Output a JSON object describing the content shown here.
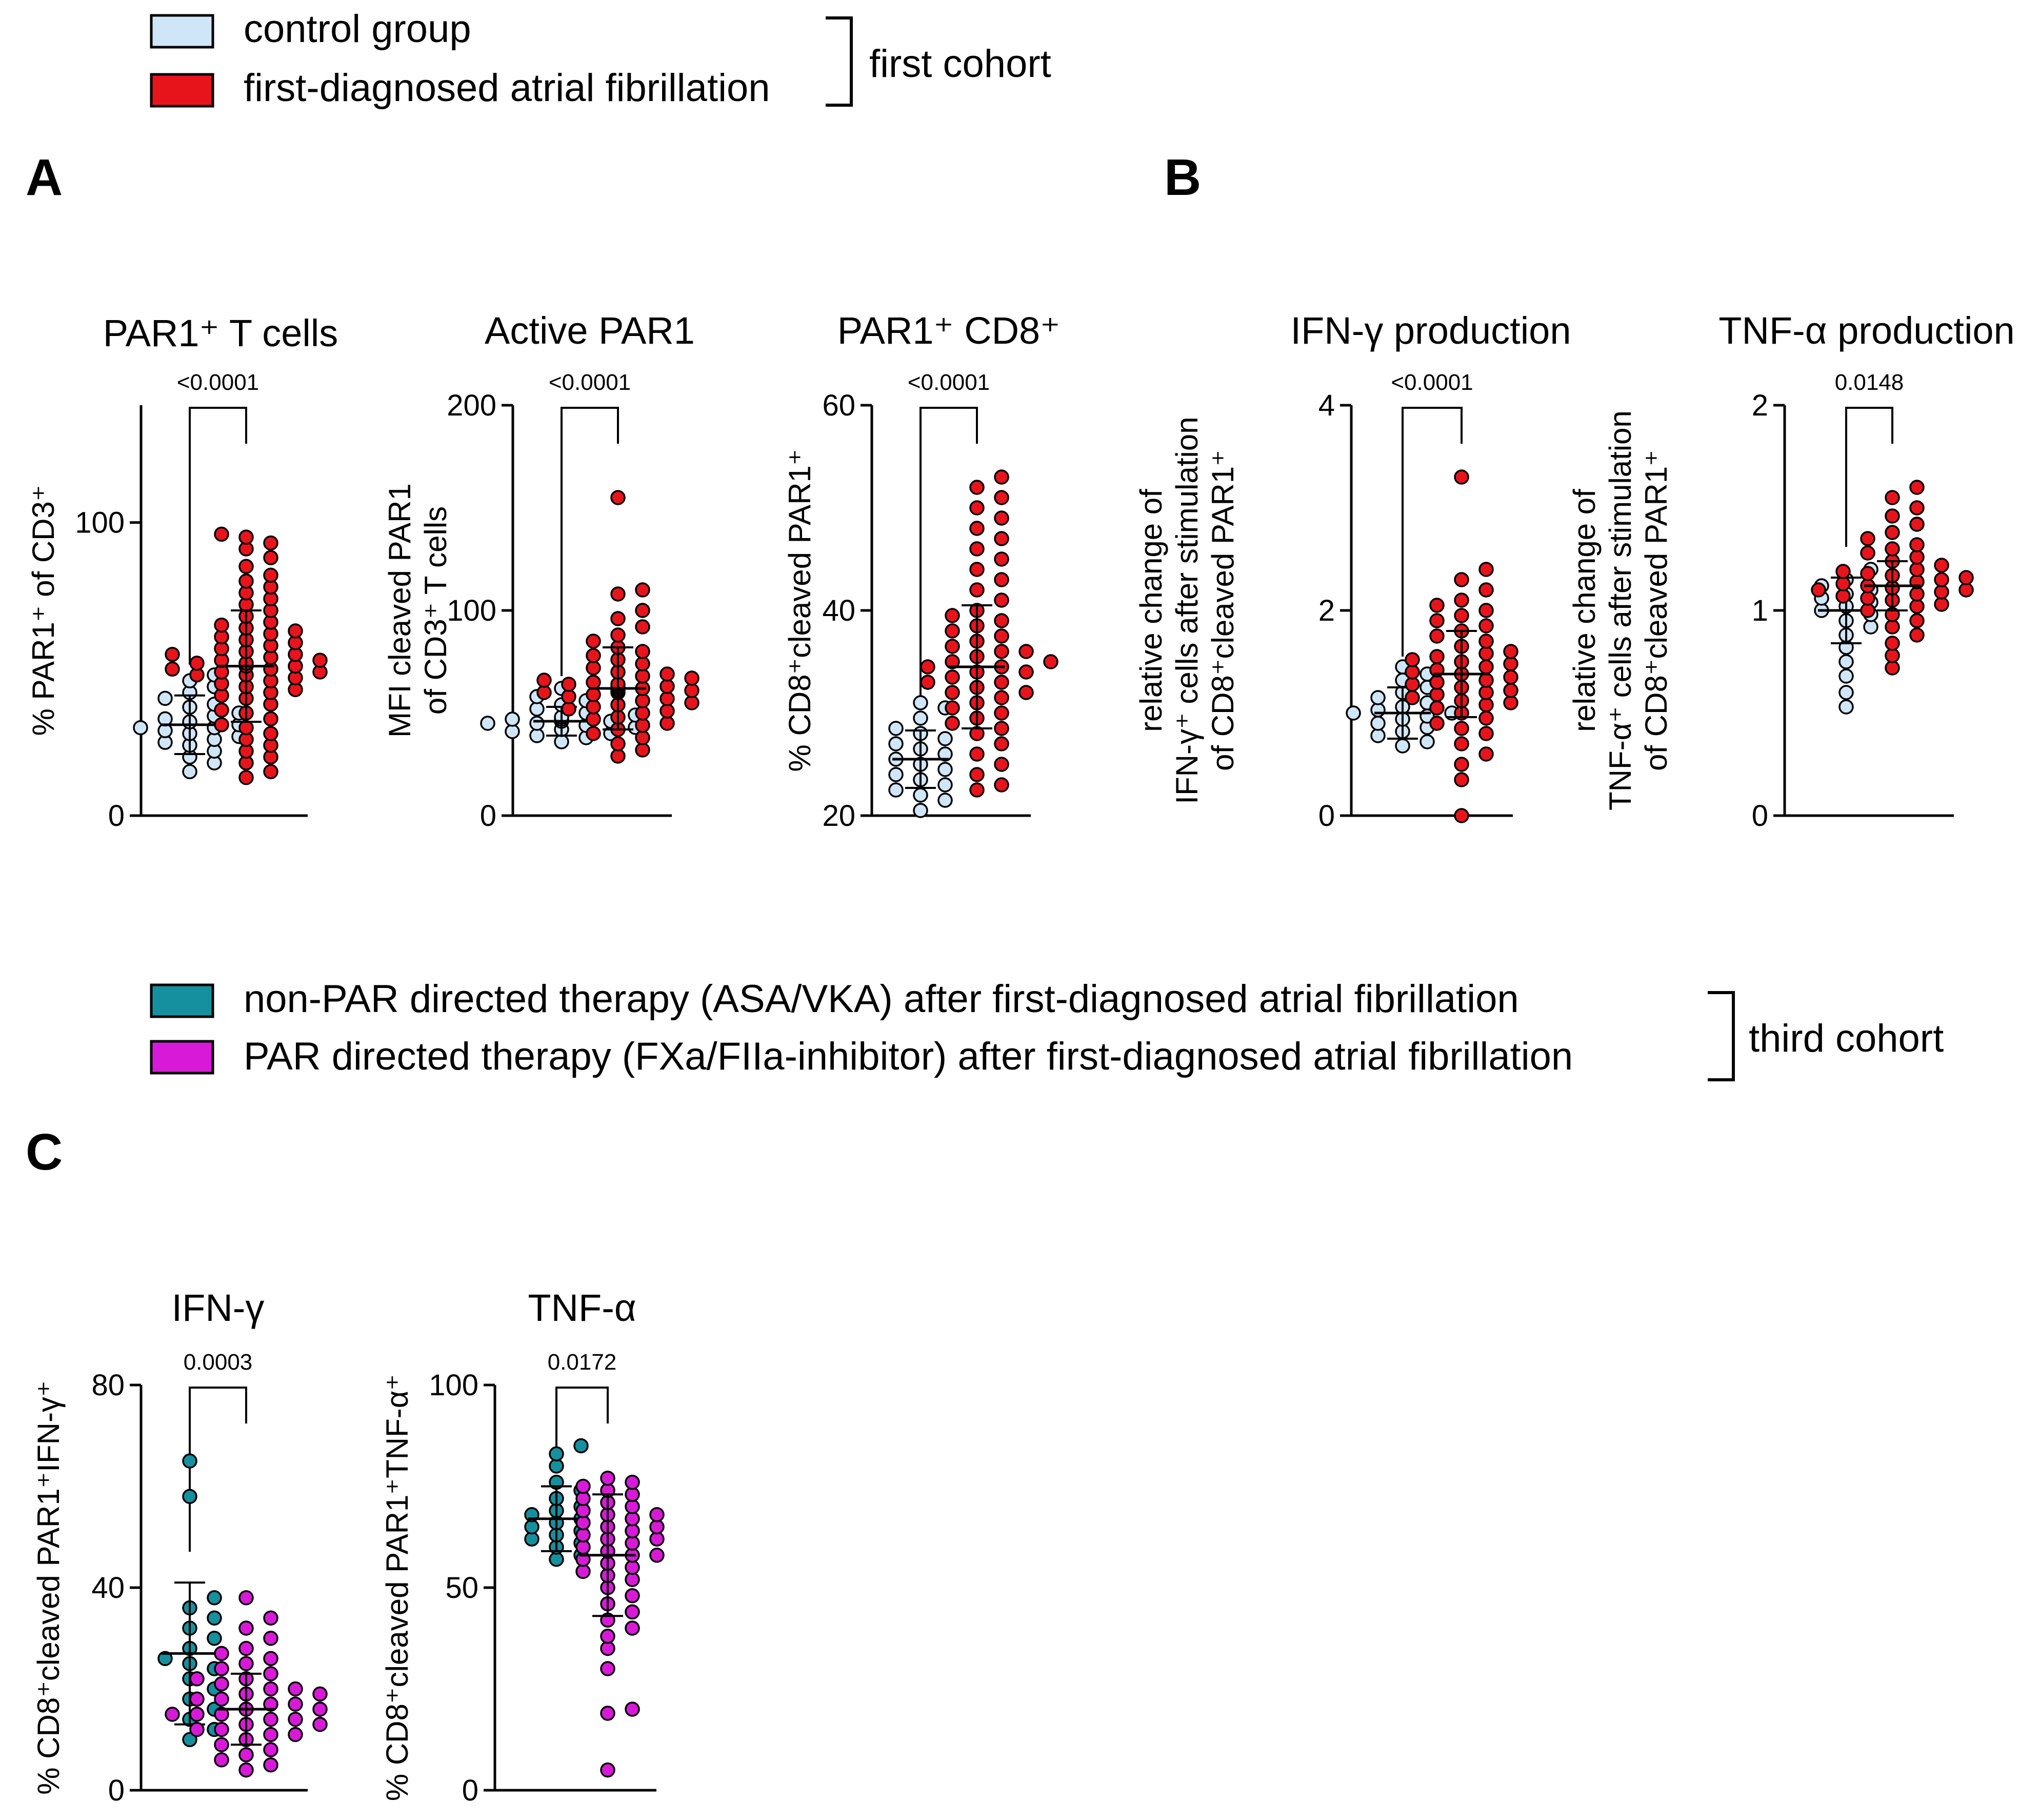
{
  "colors": {
    "control": "#cfe6f8",
    "afib": "#e8141c",
    "nonpar": "#15909e",
    "par": "#d81ad8",
    "axis": "#000000"
  },
  "legend_top": {
    "items": [
      "control group",
      "first-diagnosed atrial fibrillation"
    ],
    "bracket_label": "first cohort"
  },
  "legend_bottom": {
    "items": [
      "non-PAR directed therapy (ASA/VKA) after first-diagnosed atrial fibrillation",
      "PAR directed therapy (FXa/FIIa-inhibitor) after first-diagnosed atrial fibrillation"
    ],
    "bracket_label": "third cohort"
  },
  "panel_labels": [
    "A",
    "B",
    "C"
  ],
  "chart_data": [
    {
      "type": "scatter",
      "panel": "A",
      "title": "PAR1⁺ T cells",
      "ylabel": [
        "% PAR1⁺ of CD3⁺"
      ],
      "ylim": [
        0,
        140
      ],
      "yticks": [
        0,
        100
      ],
      "pvalue": "<0.0001",
      "series": [
        {
          "name": "control group",
          "mean": 31,
          "sd": 10,
          "values": [
            15,
            18,
            20,
            22,
            24,
            25,
            26,
            27,
            28,
            29,
            30,
            30,
            31,
            32,
            33,
            34,
            35,
            37,
            38,
            40,
            42,
            44,
            46,
            48
          ]
        },
        {
          "name": "first-diagnosed atrial fibrillation",
          "mean": 51,
          "sd": 19,
          "values": [
            13,
            15,
            18,
            20,
            22,
            24,
            26,
            28,
            30,
            31,
            33,
            35,
            36,
            38,
            40,
            41,
            42,
            43,
            44,
            45,
            46,
            47,
            48,
            48,
            49,
            49,
            50,
            50,
            51,
            51,
            52,
            52,
            53,
            53,
            54,
            55,
            55,
            56,
            57,
            58,
            59,
            60,
            61,
            62,
            63,
            64,
            65,
            66,
            68,
            70,
            72,
            74,
            76,
            78,
            80,
            82,
            85,
            88,
            91,
            93,
            95,
            96
          ]
        }
      ]
    },
    {
      "type": "scatter",
      "panel": "A",
      "title": "Active PAR1",
      "ylabel": [
        "MFI  cleaved PAR1",
        "of  CD3⁺ T cells"
      ],
      "ylim": [
        0,
        200
      ],
      "yticks": [
        0,
        100,
        200
      ],
      "pvalue": "<0.0001",
      "series": [
        {
          "name": "control group",
          "mean": 46,
          "sd": 7,
          "values": [
            36,
            38,
            39,
            40,
            41,
            42,
            43,
            44,
            45,
            45,
            46,
            46,
            47,
            47,
            48,
            49,
            50,
            52,
            54,
            56,
            58,
            62
          ]
        },
        {
          "name": "first-diagnosed atrial fibrillation",
          "mean": 62,
          "sd": 20,
          "values": [
            29,
            32,
            35,
            38,
            40,
            42,
            44,
            45,
            47,
            48,
            50,
            51,
            52,
            53,
            54,
            55,
            56,
            57,
            58,
            59,
            60,
            60,
            61,
            61,
            62,
            62,
            63,
            63,
            64,
            64,
            65,
            66,
            67,
            68,
            69,
            70,
            72,
            74,
            76,
            78,
            80,
            82,
            85,
            88,
            92,
            96,
            100,
            108,
            110,
            155
          ]
        }
      ]
    },
    {
      "type": "scatter",
      "panel": "A",
      "title": "PAR1⁺ CD8⁺",
      "ylabel": [
        "% CD8⁺cleaved PAR1⁺"
      ],
      "ylim": [
        20,
        60
      ],
      "yticks": [
        20,
        40,
        60
      ],
      "pvalue": "<0.0001",
      "series": [
        {
          "name": "control group",
          "mean": 25.5,
          "sd": 2.8,
          "values": [
            20.5,
            21.5,
            22.0,
            22.5,
            23.0,
            23.5,
            24.0,
            24.5,
            25.0,
            25.5,
            26.0,
            26.5,
            27.0,
            27.5,
            28.0,
            28.5,
            29.5,
            30.5,
            31.0
          ]
        },
        {
          "name": "first-diagnosed atrial fibrillation",
          "mean": 34.5,
          "sd": 6,
          "values": [
            22.5,
            23,
            24,
            25,
            26,
            27,
            28,
            28.5,
            29,
            29.5,
            30,
            30.5,
            31,
            31.5,
            32,
            32,
            32.5,
            33,
            33,
            33.5,
            34,
            34,
            34.5,
            34.5,
            35,
            35,
            35.5,
            36,
            36,
            36.5,
            37,
            37.5,
            38,
            38.5,
            39,
            39.5,
            40,
            41,
            42,
            43,
            44,
            45,
            46,
            47,
            48,
            49,
            50,
            51,
            52,
            53
          ]
        }
      ]
    },
    {
      "type": "scatter",
      "panel": "B",
      "title": "IFN-γ production",
      "ylabel": [
        "relative change of",
        "IFN-γ⁺ cells after stimulation",
        "of CD8⁺cleaved PAR1⁺"
      ],
      "ylim": [
        0,
        4
      ],
      "yticks": [
        0,
        2,
        4
      ],
      "pvalue": "<0.0001",
      "series": [
        {
          "name": "control group",
          "mean": 1.0,
          "sd": 0.25,
          "values": [
            0.68,
            0.72,
            0.78,
            0.82,
            0.86,
            0.9,
            0.94,
            0.97,
            1.0,
            1.0,
            1.03,
            1.06,
            1.1,
            1.15,
            1.2,
            1.25,
            1.32,
            1.38,
            1.45
          ]
        },
        {
          "name": "first-diagnosed atrial fibrillation",
          "mean": 1.38,
          "sd": 0.42,
          "values": [
            0.0,
            0.35,
            0.5,
            0.6,
            0.7,
            0.8,
            0.85,
            0.9,
            0.95,
            1.0,
            1.05,
            1.08,
            1.1,
            1.12,
            1.15,
            1.18,
            1.2,
            1.22,
            1.25,
            1.28,
            1.3,
            1.32,
            1.35,
            1.38,
            1.4,
            1.42,
            1.45,
            1.48,
            1.5,
            1.52,
            1.55,
            1.58,
            1.6,
            1.65,
            1.7,
            1.75,
            1.8,
            1.85,
            1.9,
            1.95,
            2.0,
            2.05,
            2.1,
            2.2,
            2.3,
            2.4,
            3.3
          ]
        }
      ]
    },
    {
      "type": "scatter",
      "panel": "B",
      "title": "TNF-α production",
      "ylabel": [
        "relative change of",
        "TNF-α⁺ cells after stimulation",
        "of CD8⁺cleaved PAR1⁺"
      ],
      "ylim": [
        0,
        2
      ],
      "yticks": [
        0,
        1,
        2
      ],
      "pvalue": "0.0148",
      "series": [
        {
          "name": "control group",
          "mean": 1.0,
          "sd": 0.16,
          "values": [
            0.53,
            0.6,
            0.68,
            0.75,
            0.82,
            0.88,
            0.92,
            0.95,
            0.98,
            1.0,
            1.02,
            1.04,
            1.06,
            1.08,
            1.1,
            1.12,
            1.15,
            1.2
          ]
        },
        {
          "name": "first-diagnosed atrial fibrillation",
          "mean": 1.12,
          "sd": 0.12,
          "values": [
            0.72,
            0.78,
            0.84,
            0.88,
            0.92,
            0.95,
            0.98,
            1.0,
            1.02,
            1.03,
            1.05,
            1.06,
            1.07,
            1.08,
            1.09,
            1.1,
            1.1,
            1.11,
            1.12,
            1.13,
            1.14,
            1.15,
            1.16,
            1.17,
            1.18,
            1.19,
            1.2,
            1.22,
            1.24,
            1.26,
            1.28,
            1.3,
            1.32,
            1.35,
            1.38,
            1.42,
            1.46,
            1.5,
            1.55,
            1.6
          ]
        }
      ]
    },
    {
      "type": "scatter",
      "panel": "C",
      "title": "IFN-γ",
      "ylabel": [
        "% CD8⁺cleaved PAR1⁺IFN-γ⁺"
      ],
      "ylim": [
        0,
        80
      ],
      "yticks": [
        0,
        40,
        80
      ],
      "pvalue": "0.0003",
      "series": [
        {
          "name": "non-PAR directed therapy (ASA/VKA)",
          "mean": 27,
          "sd": 14,
          "values": [
            10,
            12,
            14,
            16,
            18,
            20,
            22,
            24,
            25,
            26,
            28,
            30,
            32,
            34,
            36,
            38,
            58,
            65
          ]
        },
        {
          "name": "PAR directed therapy (FXa/FIIa-inhibitor)",
          "mean": 16,
          "sd": 7,
          "values": [
            4,
            5,
            6,
            7,
            8,
            9,
            10,
            11,
            11,
            12,
            12,
            13,
            13,
            14,
            14,
            15,
            15,
            15,
            16,
            16,
            16,
            17,
            17,
            18,
            18,
            19,
            19,
            20,
            20,
            21,
            22,
            22,
            23,
            24,
            25,
            26,
            27,
            28,
            30,
            32,
            34,
            38
          ]
        }
      ]
    },
    {
      "type": "scatter",
      "panel": "C",
      "title": "TNF-α",
      "ylabel": [
        "% CD8⁺cleaved PAR1⁺TNF-α⁺"
      ],
      "ylim": [
        0,
        100
      ],
      "yticks": [
        0,
        50,
        100
      ],
      "pvalue": "0.0172",
      "series": [
        {
          "name": "non-PAR directed therapy (ASA/VKA)",
          "mean": 67,
          "sd": 8,
          "values": [
            57,
            58,
            60,
            61,
            62,
            63,
            64,
            65,
            66,
            67,
            68,
            69,
            70,
            72,
            74,
            76,
            80,
            83,
            85
          ]
        },
        {
          "name": "PAR directed therapy (FXa/FIIa-inhibitor)",
          "mean": 58,
          "sd": 15,
          "values": [
            5,
            19,
            20,
            30,
            35,
            38,
            40,
            42,
            44,
            46,
            48,
            50,
            52,
            53,
            54,
            55,
            56,
            57,
            58,
            58,
            59,
            60,
            61,
            62,
            62,
            63,
            64,
            65,
            65,
            66,
            67,
            68,
            68,
            69,
            70,
            71,
            72,
            73,
            74,
            75,
            76,
            77
          ]
        }
      ]
    }
  ]
}
